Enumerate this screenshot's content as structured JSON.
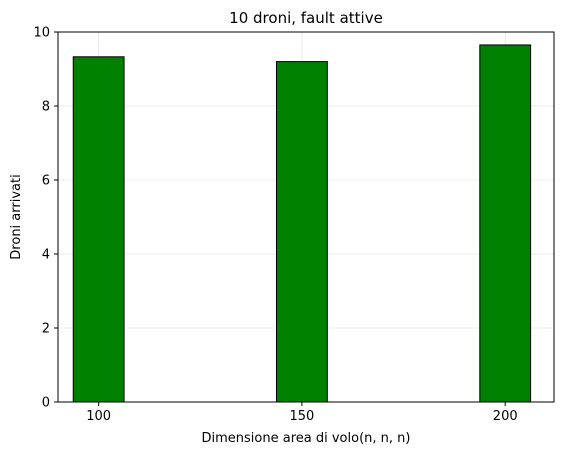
{
  "chart_data": {
    "type": "bar",
    "title": "10 droni, fault attive",
    "xlabel": "Dimensione area di volo(n, n, n)",
    "ylabel": "Droni arrivati",
    "x": [
      100,
      150,
      200
    ],
    "values": [
      9.33,
      9.2,
      9.65
    ],
    "xlim": [
      90,
      212
    ],
    "ylim": [
      0,
      10
    ],
    "xticks": [
      100,
      150,
      200
    ],
    "yticks": [
      0,
      2,
      4,
      6,
      8,
      10
    ],
    "bar_width": 12.5,
    "bar_color": "#008000",
    "bar_edge_color": "#000000",
    "grid": true
  }
}
